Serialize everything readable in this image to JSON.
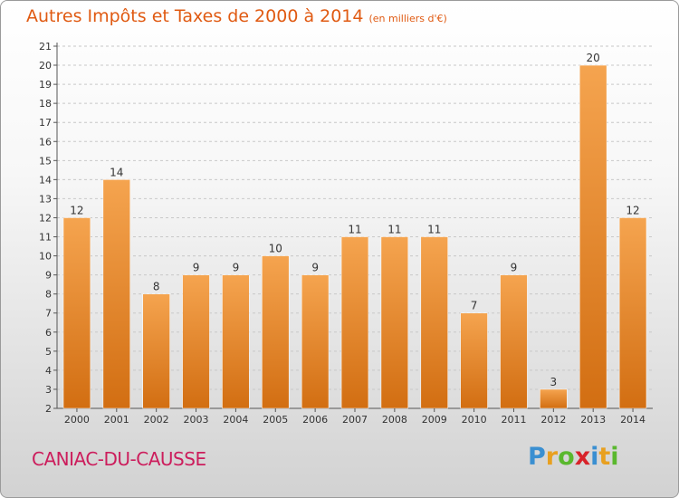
{
  "title": "Autres Impôts et Taxes de 2000 à 2014",
  "subtitle": "(en milliers d'€)",
  "commune": "CANIAC-DU-CAUSSE",
  "logo": {
    "letters": [
      "P",
      "r",
      "o",
      "x",
      "i",
      "t",
      "i"
    ],
    "colors": [
      "#3a8fd1",
      "#e8a020",
      "#5ab82e",
      "#d8232a",
      "#3a8fd1",
      "#e8a020",
      "#5ab82e"
    ]
  },
  "colors": {
    "title": "#e05a12",
    "commune": "#cc1d5c",
    "bar_top": "#f5a44f",
    "bar_bottom": "#d26e12"
  },
  "chart_data": {
    "type": "bar",
    "title": "Autres Impôts et Taxes de 2000 à 2014",
    "subtitle": "(en milliers d'€)",
    "categories": [
      "2000",
      "2001",
      "2002",
      "2003",
      "2004",
      "2005",
      "2006",
      "2007",
      "2008",
      "2009",
      "2010",
      "2011",
      "2012",
      "2013",
      "2014"
    ],
    "values": [
      12,
      14,
      8,
      9,
      9,
      10,
      9,
      11,
      11,
      11,
      7,
      9,
      3,
      20,
      12
    ],
    "ylim": [
      2,
      21
    ],
    "yticks": [
      2,
      3,
      4,
      5,
      6,
      7,
      8,
      9,
      10,
      11,
      12,
      13,
      14,
      15,
      16,
      17,
      18,
      19,
      20,
      21
    ],
    "grid": true,
    "data_labels": true
  }
}
